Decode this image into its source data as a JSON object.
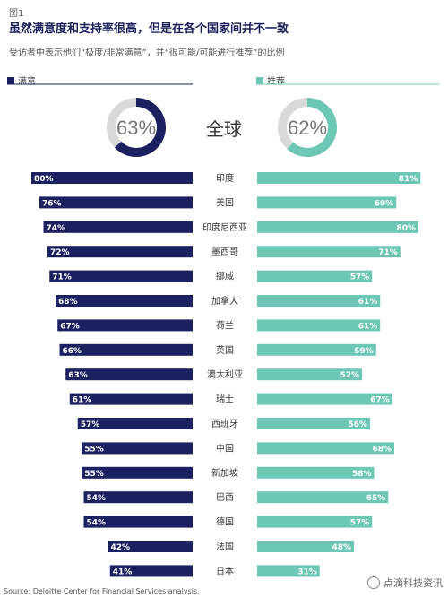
{
  "figure_label": "图1",
  "title": "虽然满意度和支持率很高，但是在各个国家间并不一致",
  "subtitle": "受访者中表示他们“极度/非常满意”，并“很可能/可能进行推荐”的比例",
  "legend": {
    "satisfied_label": "满意",
    "recommend_label": "推荐",
    "satisfied_color": "#1b2060",
    "recommend_color": "#6cc7b5"
  },
  "global": {
    "label": "全球",
    "satisfied_text": "63%",
    "recommend_text": "62%",
    "satisfied_value": 63,
    "recommend_value": 62
  },
  "chart_data": {
    "type": "bar",
    "categories": [
      "印度",
      "美国",
      "印度尼西亚",
      "墨西哥",
      "挪威",
      "加拿大",
      "荷兰",
      "英国",
      "澳大利亚",
      "瑞士",
      "西班牙",
      "中国",
      "新加坡",
      "巴西",
      "德国",
      "法国",
      "日本"
    ],
    "series": [
      {
        "name": "满意",
        "values": [
          80,
          76,
          74,
          72,
          71,
          68,
          67,
          66,
          63,
          61,
          57,
          55,
          55,
          54,
          54,
          42,
          41
        ]
      },
      {
        "name": "推荐",
        "values": [
          81,
          69,
          80,
          71,
          57,
          61,
          61,
          59,
          52,
          67,
          56,
          68,
          58,
          65,
          57,
          48,
          31
        ]
      }
    ],
    "value_suffix": "%",
    "xlim": [
      0,
      100
    ]
  },
  "source": "Source: Deloitte Center for Financial Services analysis.",
  "watermark": "点滴科技资讯"
}
